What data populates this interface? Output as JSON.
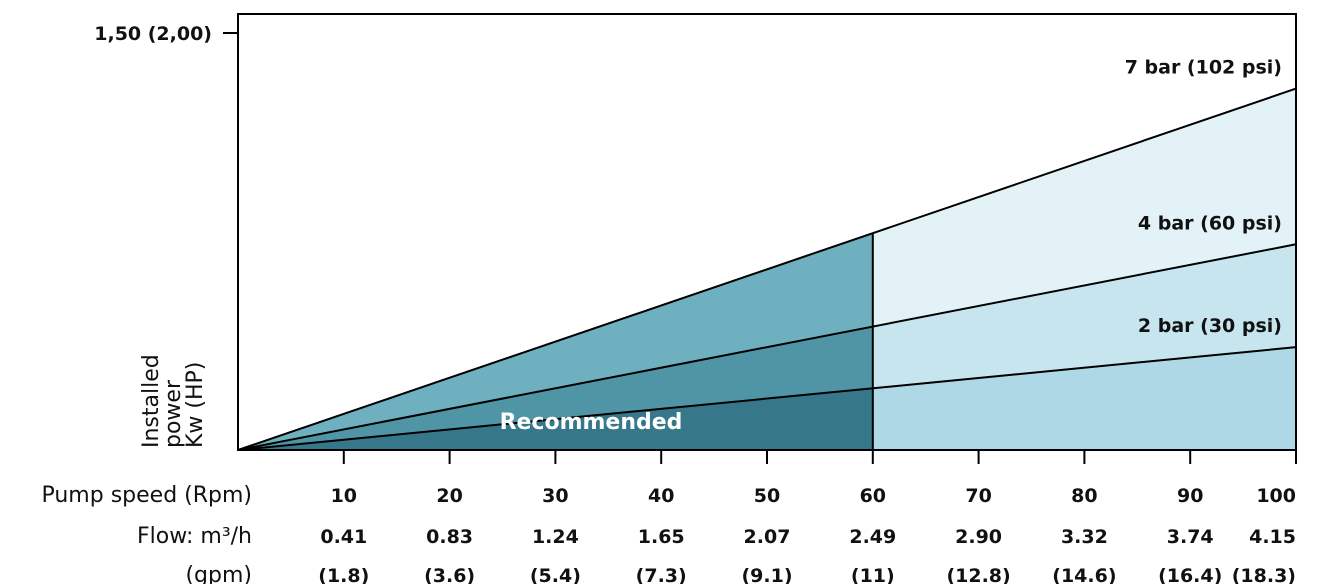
{
  "chart_data": {
    "type": "line",
    "ylabel": [
      "Installed",
      "power",
      "Kw (HP)"
    ],
    "y_tick_label": "1,50 (2,00)",
    "ymax": 1.5,
    "x_rows": [
      {
        "label": "Pump speed (Rpm)",
        "values": [
          "10",
          "20",
          "30",
          "40",
          "50",
          "60",
          "70",
          "80",
          "90",
          "100"
        ]
      },
      {
        "label": "Flow: m³/h",
        "values": [
          "0.41",
          "0.83",
          "1.24",
          "1.65",
          "2.07",
          "2.49",
          "2.90",
          "3.32",
          "3.74",
          "4.15"
        ]
      },
      {
        "label": "(gpm)",
        "values": [
          "(1.8)",
          "(3.6)",
          "(5.4)",
          "(7.3)",
          "(9.1)",
          "(11)",
          "(12.8)",
          "(14.6)",
          "(16.4)",
          "(18.3)"
        ]
      }
    ],
    "x_range": [
      0,
      100
    ],
    "recommended_max_rpm": 60,
    "recommended_label": "Recommended",
    "series": [
      {
        "name": "7 bar (102 psi)",
        "x": [
          0,
          100
        ],
        "y": [
          0,
          1.3
        ]
      },
      {
        "name": "4 bar (60 psi)",
        "x": [
          0,
          100
        ],
        "y": [
          0,
          0.74
        ]
      },
      {
        "name": "2 bar (30 psi)",
        "x": [
          0,
          100
        ],
        "y": [
          0,
          0.37
        ]
      }
    ],
    "colors": {
      "recommended": [
        "#6eb0c0",
        "#4f95a5",
        "#36788a"
      ],
      "beyond": [
        "#e2f2f7",
        "#c6e5ee",
        "#aed8e5"
      ]
    }
  }
}
